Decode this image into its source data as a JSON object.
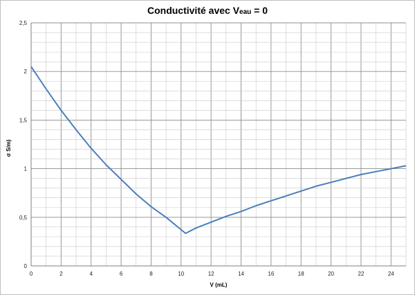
{
  "chart_data": {
    "type": "line",
    "title_main": "Conductivité avec V",
    "title_sub": "eau",
    "title_tail": " = 0",
    "xlabel": "V (mL)",
    "ylabel": "σ S/m)",
    "xlim": [
      0,
      25
    ],
    "ylim": [
      0,
      2.5
    ],
    "x_ticks": [
      0,
      2,
      4,
      6,
      8,
      10,
      12,
      14,
      16,
      18,
      20,
      22,
      24
    ],
    "x_minor_step": 1,
    "y_ticks": [
      {
        "value": 0,
        "label": "0"
      },
      {
        "value": 0.5,
        "label": "0,5"
      },
      {
        "value": 1,
        "label": "1"
      },
      {
        "value": 1.5,
        "label": "1,5"
      },
      {
        "value": 2,
        "label": "2"
      },
      {
        "value": 2.5,
        "label": "2,5"
      }
    ],
    "y_minor_step": 0.1,
    "grid": true,
    "series_color": "#4a7ebb",
    "series": [
      {
        "x": [
          0,
          1,
          2,
          3,
          4,
          5,
          6,
          7,
          8,
          9,
          10.3,
          11,
          12,
          13,
          14,
          15,
          16,
          17,
          18,
          19,
          20,
          21,
          22,
          23,
          24,
          25
        ],
        "y": [
          2.05,
          1.82,
          1.6,
          1.4,
          1.21,
          1.04,
          0.89,
          0.74,
          0.61,
          0.5,
          0.335,
          0.39,
          0.45,
          0.51,
          0.56,
          0.62,
          0.67,
          0.72,
          0.77,
          0.82,
          0.86,
          0.9,
          0.94,
          0.97,
          1.0,
          1.03
        ]
      }
    ]
  }
}
